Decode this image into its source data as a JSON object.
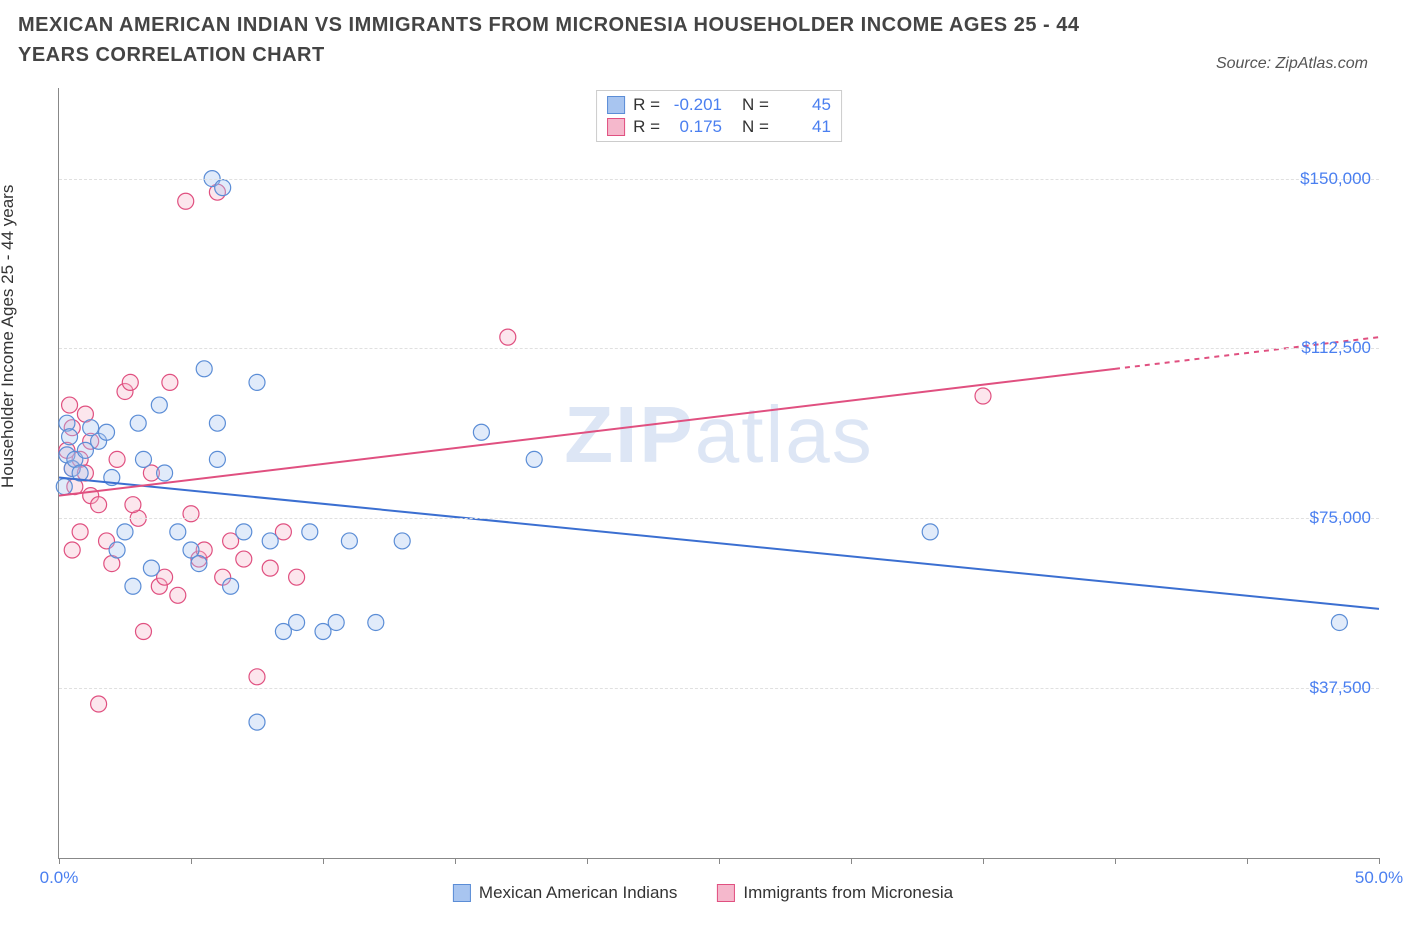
{
  "title": "MEXICAN AMERICAN INDIAN VS IMMIGRANTS FROM MICRONESIA HOUSEHOLDER INCOME AGES 25 - 44 YEARS CORRELATION CHART",
  "source": "Source: ZipAtlas.com",
  "watermark_bold": "ZIP",
  "watermark_light": "atlas",
  "chart": {
    "type": "scatter",
    "ylabel": "Householder Income Ages 25 - 44 years",
    "background_color": "#ffffff",
    "grid_color": "#e0e0e0",
    "axis_color": "#888888",
    "label_color": "#4a7ff0",
    "title_fontsize": 20,
    "label_fontsize": 17,
    "xlim": [
      0,
      50
    ],
    "ylim": [
      0,
      170000
    ],
    "xticks": [
      0,
      5,
      10,
      15,
      20,
      25,
      30,
      35,
      40,
      45,
      50
    ],
    "xtick_labels_shown": {
      "0": "0.0%",
      "50": "50.0%"
    },
    "yticks": [
      37500,
      75000,
      112500,
      150000
    ],
    "ytick_labels": [
      "$37,500",
      "$75,000",
      "$112,500",
      "$150,000"
    ],
    "marker_radius": 8,
    "marker_fill_opacity": 0.35,
    "marker_stroke_width": 1.2,
    "line_width": 2,
    "series": [
      {
        "name": "Mexican American Indians",
        "color_fill": "#a8c5f0",
        "color_stroke": "#5b8dd6",
        "line_color": "#3b6fd1",
        "R": "-0.201",
        "N": "45",
        "trend_p1": [
          0,
          84000
        ],
        "trend_p2": [
          50,
          55000
        ],
        "points": [
          [
            0.3,
            96000
          ],
          [
            0.3,
            89000
          ],
          [
            0.4,
            93000
          ],
          [
            0.5,
            86000
          ],
          [
            0.6,
            88000
          ],
          [
            0.8,
            85000
          ],
          [
            0.2,
            82000
          ],
          [
            1.0,
            90000
          ],
          [
            1.2,
            95000
          ],
          [
            1.5,
            92000
          ],
          [
            1.8,
            94000
          ],
          [
            2.0,
            84000
          ],
          [
            2.2,
            68000
          ],
          [
            2.5,
            72000
          ],
          [
            2.8,
            60000
          ],
          [
            3.0,
            96000
          ],
          [
            3.2,
            88000
          ],
          [
            3.5,
            64000
          ],
          [
            3.8,
            100000
          ],
          [
            4.0,
            85000
          ],
          [
            4.5,
            72000
          ],
          [
            5.0,
            68000
          ],
          [
            5.3,
            65000
          ],
          [
            5.5,
            108000
          ],
          [
            5.8,
            150000
          ],
          [
            6.0,
            88000
          ],
          [
            6.2,
            148000
          ],
          [
            6.5,
            60000
          ],
          [
            7.0,
            72000
          ],
          [
            7.5,
            105000
          ],
          [
            8.0,
            70000
          ],
          [
            8.5,
            50000
          ],
          [
            9.0,
            52000
          ],
          [
            9.5,
            72000
          ],
          [
            10.0,
            50000
          ],
          [
            10.5,
            52000
          ],
          [
            11.0,
            70000
          ],
          [
            12.0,
            52000
          ],
          [
            13.0,
            70000
          ],
          [
            16.0,
            94000
          ],
          [
            18.0,
            88000
          ],
          [
            7.5,
            30000
          ],
          [
            33.0,
            72000
          ],
          [
            48.5,
            52000
          ],
          [
            6.0,
            96000
          ]
        ]
      },
      {
        "name": "Immigrants from Micronesia",
        "color_fill": "#f5b8cc",
        "color_stroke": "#e05080",
        "line_color": "#e05080",
        "R": "0.175",
        "N": "41",
        "trend_p1": [
          0,
          80000
        ],
        "trend_p2": [
          40,
          108000
        ],
        "trend_dash_p2": [
          50,
          115000
        ],
        "points": [
          [
            0.3,
            90000
          ],
          [
            0.5,
            86000
          ],
          [
            0.6,
            82000
          ],
          [
            0.8,
            88000
          ],
          [
            1.0,
            85000
          ],
          [
            1.2,
            80000
          ],
          [
            1.5,
            78000
          ],
          [
            0.4,
            100000
          ],
          [
            1.0,
            98000
          ],
          [
            1.8,
            70000
          ],
          [
            2.0,
            65000
          ],
          [
            2.2,
            88000
          ],
          [
            2.5,
            103000
          ],
          [
            2.7,
            105000
          ],
          [
            3.0,
            75000
          ],
          [
            3.2,
            50000
          ],
          [
            3.5,
            85000
          ],
          [
            3.8,
            60000
          ],
          [
            4.0,
            62000
          ],
          [
            4.2,
            105000
          ],
          [
            4.5,
            58000
          ],
          [
            4.8,
            145000
          ],
          [
            5.0,
            76000
          ],
          [
            5.3,
            66000
          ],
          [
            5.5,
            68000
          ],
          [
            6.0,
            147000
          ],
          [
            6.2,
            62000
          ],
          [
            6.5,
            70000
          ],
          [
            7.0,
            66000
          ],
          [
            7.5,
            40000
          ],
          [
            8.0,
            64000
          ],
          [
            8.5,
            72000
          ],
          [
            9.0,
            62000
          ],
          [
            1.5,
            34000
          ],
          [
            0.8,
            72000
          ],
          [
            0.5,
            68000
          ],
          [
            0.5,
            95000
          ],
          [
            17.0,
            115000
          ],
          [
            35.0,
            102000
          ],
          [
            1.2,
            92000
          ],
          [
            2.8,
            78000
          ]
        ]
      }
    ],
    "bottom_legend": [
      {
        "label": "Mexican American Indians",
        "fill": "#a8c5f0",
        "stroke": "#5b8dd6"
      },
      {
        "label": "Immigrants from Micronesia",
        "fill": "#f5b8cc",
        "stroke": "#e05080"
      }
    ],
    "top_legend": {
      "rows": [
        {
          "fill": "#a8c5f0",
          "stroke": "#5b8dd6",
          "R": "-0.201",
          "N": "45"
        },
        {
          "fill": "#f5b8cc",
          "stroke": "#e05080",
          "R": "0.175",
          "N": "41"
        }
      ]
    }
  }
}
